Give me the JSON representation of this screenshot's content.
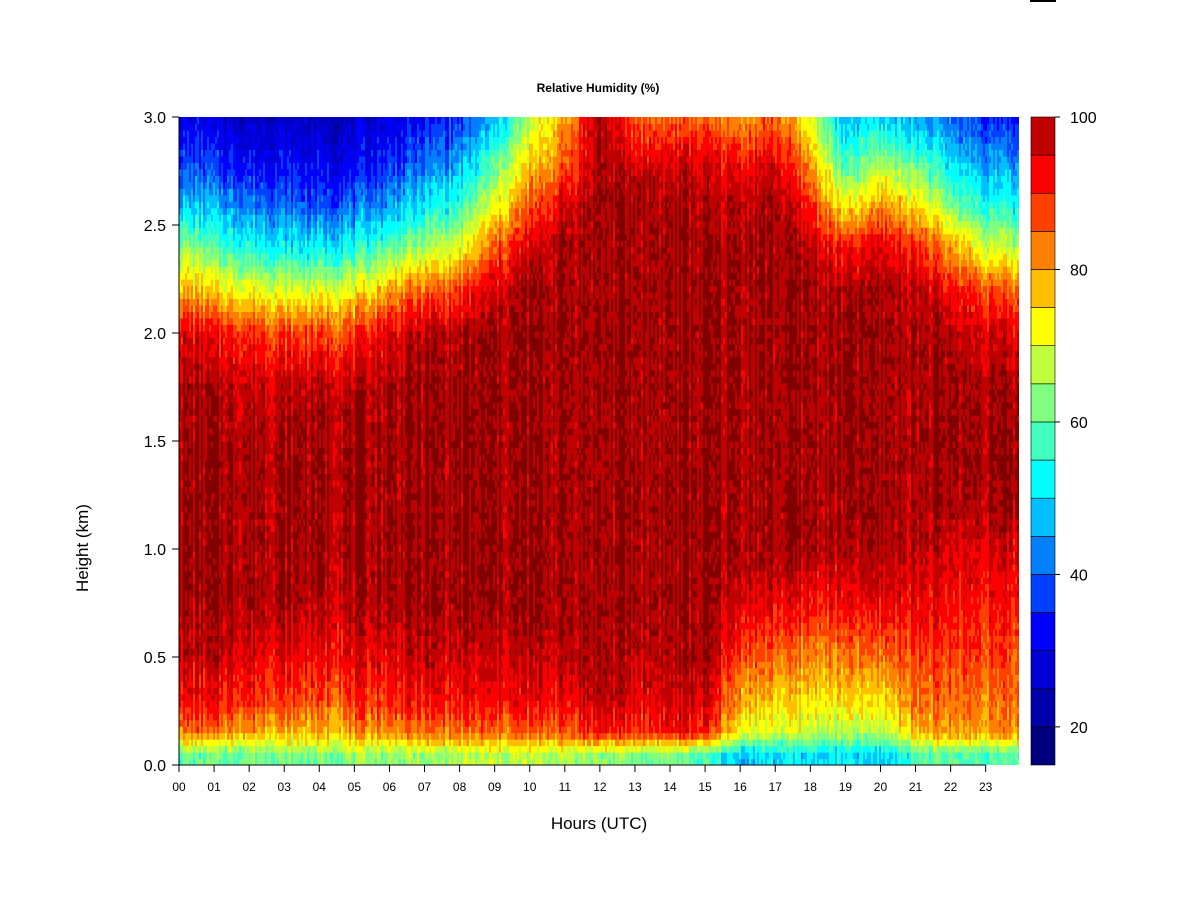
{
  "chart_data": {
    "type": "heatmap",
    "title": "Relative Humidity (%)",
    "xlabel": "Hours (UTC)",
    "ylabel": "Height (km)",
    "x_tick_labels": [
      "00",
      "01",
      "02",
      "03",
      "04",
      "05",
      "06",
      "07",
      "08",
      "09",
      "10",
      "11",
      "12",
      "13",
      "14",
      "15",
      "16",
      "17",
      "18",
      "19",
      "20",
      "21",
      "22",
      "23"
    ],
    "y_tick_labels": [
      "0.0",
      "0.5",
      "1.0",
      "1.5",
      "2.0",
      "2.5",
      "3.0"
    ],
    "xlim": [
      0,
      23.95
    ],
    "ylim": [
      0,
      3.0
    ],
    "colorbar": {
      "range": [
        15,
        100
      ],
      "levels": [
        15,
        20,
        25,
        30,
        35,
        40,
        45,
        50,
        55,
        60,
        65,
        70,
        75,
        80,
        85,
        90,
        95,
        100
      ],
      "tick_labels": [
        "20",
        "40",
        "60",
        "80",
        "100"
      ],
      "tick_values": [
        20,
        40,
        60,
        80,
        100
      ],
      "colors": [
        "#00007F",
        "#0000AA",
        "#0000D4",
        "#0000FF",
        "#0040FF",
        "#0080FF",
        "#00BFFF",
        "#00FFFF",
        "#40FFBF",
        "#80FF80",
        "#BFFF40",
        "#FFFF00",
        "#FFBF00",
        "#FF8000",
        "#FF4000",
        "#FF0000",
        "#C00000"
      ],
      "saturated_color": "#800000"
    },
    "grid": false,
    "heights_km": [
      0.05,
      0.15,
      0.3,
      0.5,
      0.75,
      1.0,
      1.25,
      1.5,
      1.75,
      2.0,
      2.2,
      2.4,
      2.6,
      2.8,
      3.0
    ],
    "hours": [
      0,
      1,
      2,
      3,
      4,
      5,
      6,
      7,
      8,
      9,
      10,
      11,
      12,
      13,
      14,
      15,
      16,
      17,
      18,
      19,
      20,
      21,
      22,
      23,
      23.95
    ],
    "humidity_percent": [
      [
        60,
        84,
        92,
        97,
        100,
        100,
        100,
        100,
        100,
        95,
        80,
        65,
        48,
        38,
        30
      ],
      [
        60,
        82,
        92,
        97,
        100,
        100,
        100,
        100,
        98,
        92,
        75,
        58,
        45,
        35,
        28
      ],
      [
        62,
        80,
        90,
        96,
        100,
        100,
        100,
        100,
        98,
        90,
        72,
        55,
        42,
        32,
        26
      ],
      [
        62,
        78,
        88,
        94,
        100,
        100,
        100,
        100,
        98,
        88,
        70,
        52,
        40,
        32,
        26
      ],
      [
        62,
        78,
        86,
        93,
        98,
        100,
        100,
        100,
        98,
        88,
        70,
        52,
        38,
        30,
        25
      ],
      [
        64,
        80,
        88,
        94,
        98,
        100,
        100,
        100,
        98,
        88,
        72,
        52,
        40,
        30,
        26
      ],
      [
        64,
        82,
        90,
        95,
        100,
        100,
        100,
        100,
        100,
        95,
        80,
        60,
        45,
        35,
        30
      ],
      [
        64,
        84,
        92,
        97,
        100,
        100,
        100,
        100,
        100,
        98,
        85,
        65,
        50,
        40,
        32
      ],
      [
        66,
        84,
        92,
        96,
        100,
        100,
        100,
        100,
        100,
        98,
        88,
        70,
        55,
        45,
        36
      ],
      [
        66,
        84,
        92,
        96,
        100,
        100,
        100,
        100,
        100,
        100,
        96,
        85,
        70,
        58,
        45
      ],
      [
        66,
        84,
        93,
        97,
        100,
        100,
        100,
        100,
        100,
        100,
        100,
        95,
        85,
        75,
        65
      ],
      [
        66,
        86,
        93,
        98,
        100,
        100,
        100,
        100,
        100,
        100,
        100,
        100,
        95,
        85,
        80
      ],
      [
        64,
        92,
        98,
        100,
        100,
        100,
        100,
        100,
        100,
        100,
        100,
        100,
        100,
        100,
        100
      ],
      [
        62,
        88,
        94,
        98,
        100,
        100,
        100,
        100,
        100,
        100,
        100,
        100,
        100,
        95,
        85
      ],
      [
        62,
        92,
        96,
        98,
        100,
        100,
        100,
        100,
        100,
        100,
        100,
        100,
        100,
        95,
        85
      ],
      [
        58,
        90,
        96,
        100,
        100,
        100,
        100,
        100,
        100,
        100,
        100,
        100,
        98,
        95,
        85
      ],
      [
        48,
        72,
        80,
        88,
        96,
        100,
        100,
        100,
        100,
        100,
        100,
        100,
        98,
        92,
        80
      ],
      [
        50,
        68,
        76,
        84,
        94,
        100,
        100,
        100,
        100,
        100,
        100,
        100,
        100,
        95,
        85
      ],
      [
        50,
        68,
        74,
        82,
        92,
        100,
        100,
        100,
        100,
        100,
        100,
        98,
        90,
        80,
        70
      ],
      [
        50,
        66,
        74,
        82,
        92,
        98,
        100,
        100,
        100,
        100,
        98,
        90,
        70,
        55,
        45
      ],
      [
        48,
        66,
        74,
        84,
        94,
        100,
        100,
        100,
        100,
        100,
        100,
        95,
        80,
        65,
        50
      ],
      [
        58,
        78,
        84,
        88,
        94,
        98,
        100,
        100,
        100,
        100,
        98,
        90,
        75,
        60,
        45
      ],
      [
        60,
        80,
        84,
        88,
        92,
        96,
        100,
        100,
        100,
        98,
        92,
        80,
        62,
        50,
        40
      ],
      [
        58,
        80,
        84,
        88,
        92,
        96,
        100,
        100,
        100,
        96,
        88,
        70,
        55,
        45,
        35
      ],
      [
        58,
        80,
        84,
        86,
        90,
        95,
        100,
        100,
        98,
        94,
        84,
        66,
        52,
        42,
        32
      ]
    ]
  }
}
